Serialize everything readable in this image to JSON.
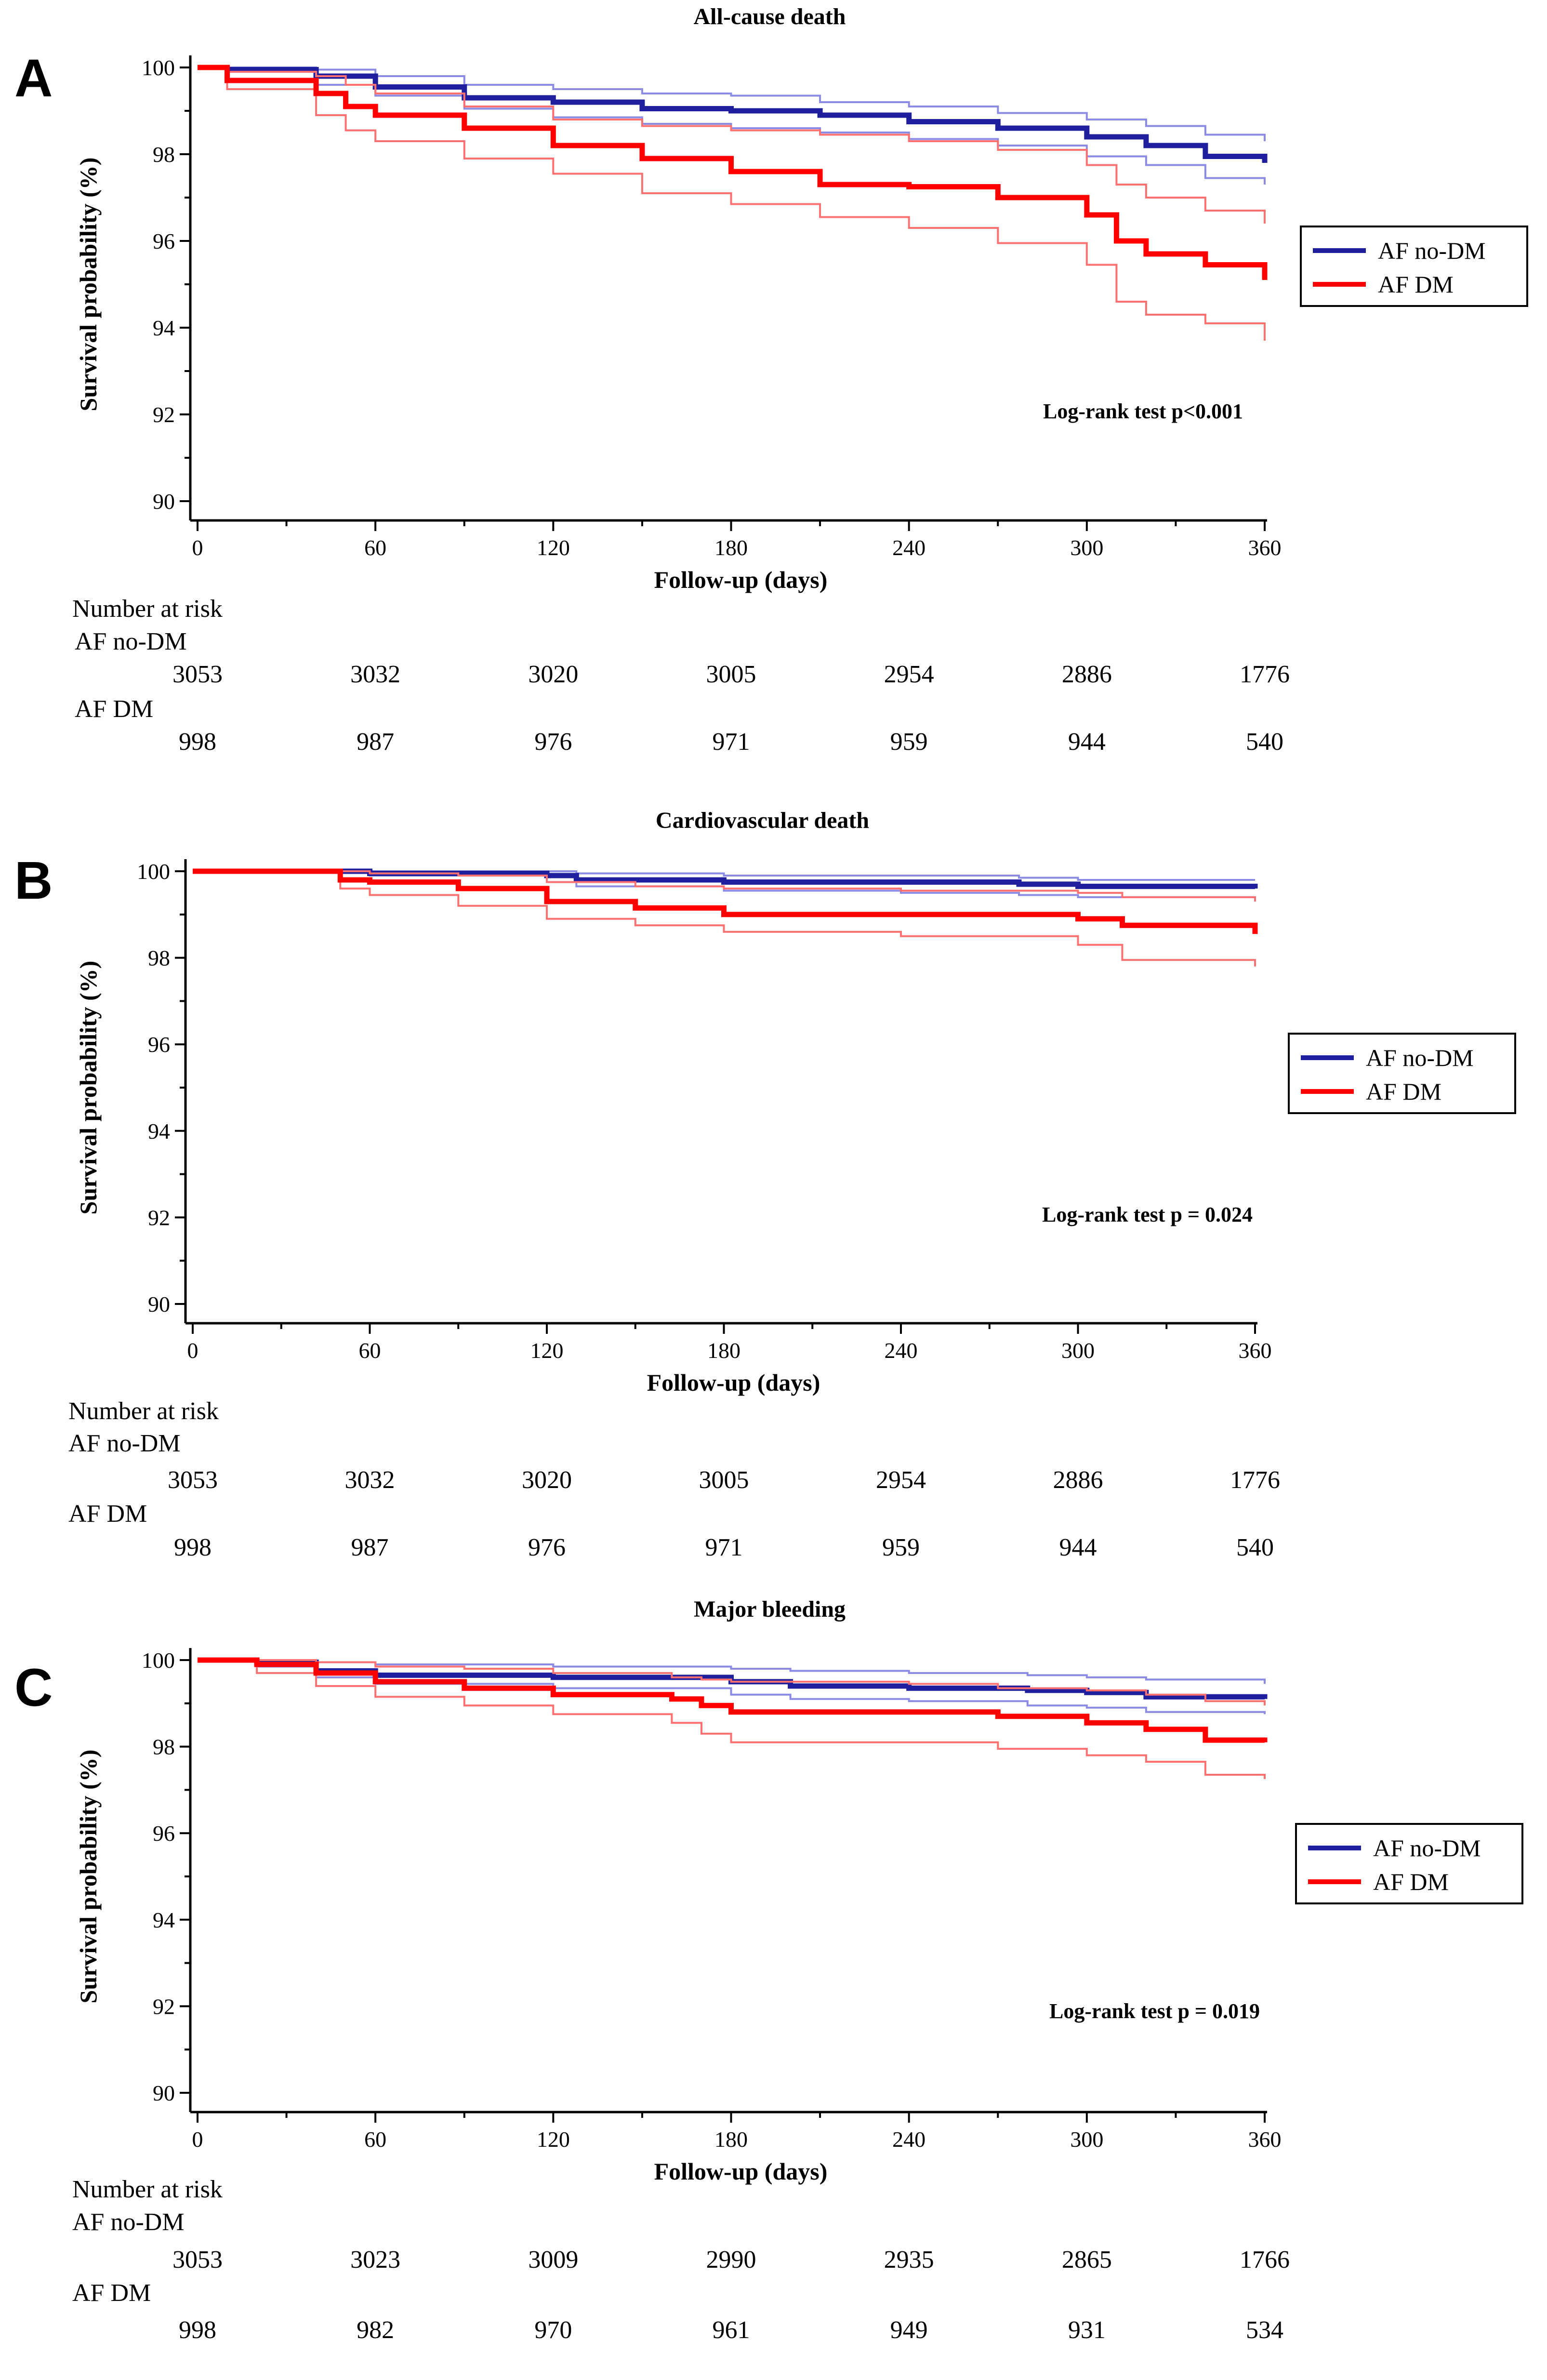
{
  "colors": {
    "blue": "#1f1f9e",
    "red": "#ff0000",
    "blue_ci": "#8b8be6",
    "red_ci": "#ff7070"
  },
  "chart_data": [
    {
      "type": "line",
      "panel_label": "A",
      "title": "All-cause death",
      "xlabel": "Follow-up (days)",
      "ylabel": "Survival probability (%)",
      "xlim": [
        0,
        360
      ],
      "ylim": [
        90,
        100
      ],
      "xticks": [
        0,
        60,
        120,
        180,
        240,
        300,
        360
      ],
      "yticks": [
        90,
        92,
        94,
        96,
        98,
        100
      ],
      "legend": [
        "AF no-DM",
        "AF DM"
      ],
      "annotation": "Log-rank test p<0.001",
      "series": [
        {
          "name": "AF no-DM",
          "color_key": "blue",
          "x": [
            0,
            10,
            40,
            60,
            90,
            120,
            150,
            180,
            210,
            240,
            270,
            300,
            320,
            340,
            360
          ],
          "values": [
            100,
            99.95,
            99.8,
            99.55,
            99.3,
            99.2,
            99.05,
            99.0,
            98.9,
            98.75,
            98.6,
            98.4,
            98.2,
            97.95,
            97.8
          ],
          "ci_upper": [
            100,
            100,
            99.95,
            99.8,
            99.6,
            99.5,
            99.4,
            99.35,
            99.2,
            99.1,
            98.95,
            98.8,
            98.65,
            98.45,
            98.3
          ],
          "ci_lower": [
            100,
            99.9,
            99.6,
            99.35,
            99.05,
            98.85,
            98.7,
            98.6,
            98.5,
            98.35,
            98.2,
            97.95,
            97.75,
            97.45,
            97.3
          ]
        },
        {
          "name": "AF DM",
          "color_key": "red",
          "x": [
            0,
            10,
            40,
            50,
            60,
            90,
            120,
            150,
            180,
            210,
            240,
            270,
            300,
            310,
            320,
            340,
            360
          ],
          "values": [
            100,
            99.7,
            99.4,
            99.1,
            98.9,
            98.6,
            98.2,
            97.9,
            97.6,
            97.3,
            97.25,
            97.0,
            96.6,
            96.0,
            95.7,
            95.45,
            95.1
          ],
          "ci_upper": [
            100,
            99.9,
            99.8,
            99.6,
            99.4,
            99.1,
            98.8,
            98.65,
            98.55,
            98.45,
            98.3,
            98.1,
            97.75,
            97.3,
            97.0,
            96.7,
            96.4
          ],
          "ci_lower": [
            100,
            99.5,
            98.9,
            98.55,
            98.3,
            97.9,
            97.55,
            97.1,
            96.85,
            96.55,
            96.3,
            95.95,
            95.45,
            94.6,
            94.3,
            94.1,
            93.7
          ]
        }
      ],
      "number_at_risk": {
        "heading": "Number at risk",
        "groups": [
          {
            "name": "AF no-DM",
            "values": [
              "3053",
              "3032",
              "3020",
              "3005",
              "2954",
              "2886",
              "1776"
            ]
          },
          {
            "name": "AF DM",
            "values": [
              "998",
              "987",
              "976",
              "971",
              "959",
              "944",
              "540"
            ]
          }
        ]
      }
    },
    {
      "type": "line",
      "panel_label": "B",
      "title": "Cardiovascular death",
      "xlabel": "Follow-up (days)",
      "ylabel": "Survival probability (%)",
      "xlim": [
        0,
        360
      ],
      "ylim": [
        90,
        100
      ],
      "xticks": [
        0,
        60,
        120,
        180,
        240,
        300,
        360
      ],
      "yticks": [
        90,
        92,
        94,
        96,
        98,
        100
      ],
      "legend": [
        "AF no-DM",
        "AF DM"
      ],
      "annotation": "Log-rank test p = 0.024",
      "series": [
        {
          "name": "AF no-DM",
          "color_key": "blue",
          "x": [
            0,
            60,
            120,
            130,
            180,
            240,
            280,
            300,
            360
          ],
          "values": [
            100,
            99.95,
            99.9,
            99.8,
            99.75,
            99.75,
            99.7,
            99.65,
            99.6
          ],
          "ci_upper": [
            100,
            100,
            100,
            99.95,
            99.9,
            99.9,
            99.85,
            99.8,
            99.8
          ],
          "ci_lower": [
            100,
            99.9,
            99.75,
            99.65,
            99.55,
            99.5,
            99.45,
            99.4,
            99.35
          ]
        },
        {
          "name": "AF DM",
          "color_key": "red",
          "x": [
            0,
            50,
            60,
            90,
            120,
            150,
            180,
            240,
            300,
            315,
            360
          ],
          "values": [
            100,
            99.8,
            99.75,
            99.6,
            99.3,
            99.15,
            99.0,
            99.0,
            98.9,
            98.75,
            98.55
          ],
          "ci_upper": [
            100,
            100,
            99.95,
            99.9,
            99.75,
            99.65,
            99.6,
            99.55,
            99.5,
            99.4,
            99.3
          ],
          "ci_lower": [
            100,
            99.6,
            99.45,
            99.2,
            98.9,
            98.75,
            98.6,
            98.5,
            98.3,
            97.95,
            97.8
          ]
        }
      ],
      "number_at_risk": {
        "heading": "Number at risk",
        "groups": [
          {
            "name": "AF no-DM",
            "values": [
              "3053",
              "3032",
              "3020",
              "3005",
              "2954",
              "2886",
              "1776"
            ]
          },
          {
            "name": "AF DM",
            "values": [
              "998",
              "987",
              "976",
              "971",
              "959",
              "944",
              "540"
            ]
          }
        ]
      }
    },
    {
      "type": "line",
      "panel_label": "C",
      "title": "Major bleeding",
      "xlabel": "Follow-up (days)",
      "ylabel": "Survival probability (%)",
      "xlim": [
        0,
        360
      ],
      "ylim": [
        90,
        100
      ],
      "xticks": [
        0,
        60,
        120,
        180,
        240,
        300,
        360
      ],
      "yticks": [
        90,
        92,
        94,
        96,
        98,
        100
      ],
      "legend": [
        "AF no-DM",
        "AF DM"
      ],
      "annotation": "Log-rank test p = 0.019",
      "series": [
        {
          "name": "AF no-DM",
          "color_key": "blue",
          "x": [
            0,
            20,
            40,
            60,
            120,
            180,
            200,
            240,
            280,
            300,
            320,
            360
          ],
          "values": [
            100,
            99.95,
            99.75,
            99.65,
            99.6,
            99.5,
            99.4,
            99.35,
            99.3,
            99.25,
            99.15,
            99.1
          ],
          "ci_upper": [
            100,
            100,
            99.95,
            99.9,
            99.85,
            99.8,
            99.75,
            99.7,
            99.65,
            99.6,
            99.55,
            99.45
          ],
          "ci_lower": [
            100,
            99.85,
            99.6,
            99.45,
            99.35,
            99.2,
            99.1,
            99.05,
            98.95,
            98.9,
            98.8,
            98.75
          ]
        },
        {
          "name": "AF DM",
          "color_key": "red",
          "x": [
            0,
            20,
            40,
            60,
            90,
            120,
            160,
            170,
            180,
            240,
            270,
            300,
            320,
            340,
            360
          ],
          "values": [
            100,
            99.9,
            99.7,
            99.5,
            99.35,
            99.2,
            99.1,
            98.95,
            98.8,
            98.8,
            98.7,
            98.55,
            98.4,
            98.15,
            98.1
          ],
          "ci_upper": [
            100,
            100,
            99.95,
            99.85,
            99.8,
            99.7,
            99.6,
            99.55,
            99.5,
            99.45,
            99.35,
            99.3,
            99.2,
            99.05,
            98.95
          ],
          "ci_lower": [
            100,
            99.7,
            99.4,
            99.15,
            98.95,
            98.75,
            98.55,
            98.3,
            98.1,
            98.1,
            97.95,
            97.8,
            97.65,
            97.35,
            97.25
          ]
        }
      ],
      "number_at_risk": {
        "heading": "Number at risk",
        "groups": [
          {
            "name": "AF no-DM",
            "values": [
              "3053",
              "3023",
              "3009",
              "2990",
              "2935",
              "2865",
              "1766"
            ]
          },
          {
            "name": "AF DM",
            "values": [
              "998",
              "982",
              "970",
              "961",
              "949",
              "931",
              "534"
            ]
          }
        ]
      }
    }
  ]
}
